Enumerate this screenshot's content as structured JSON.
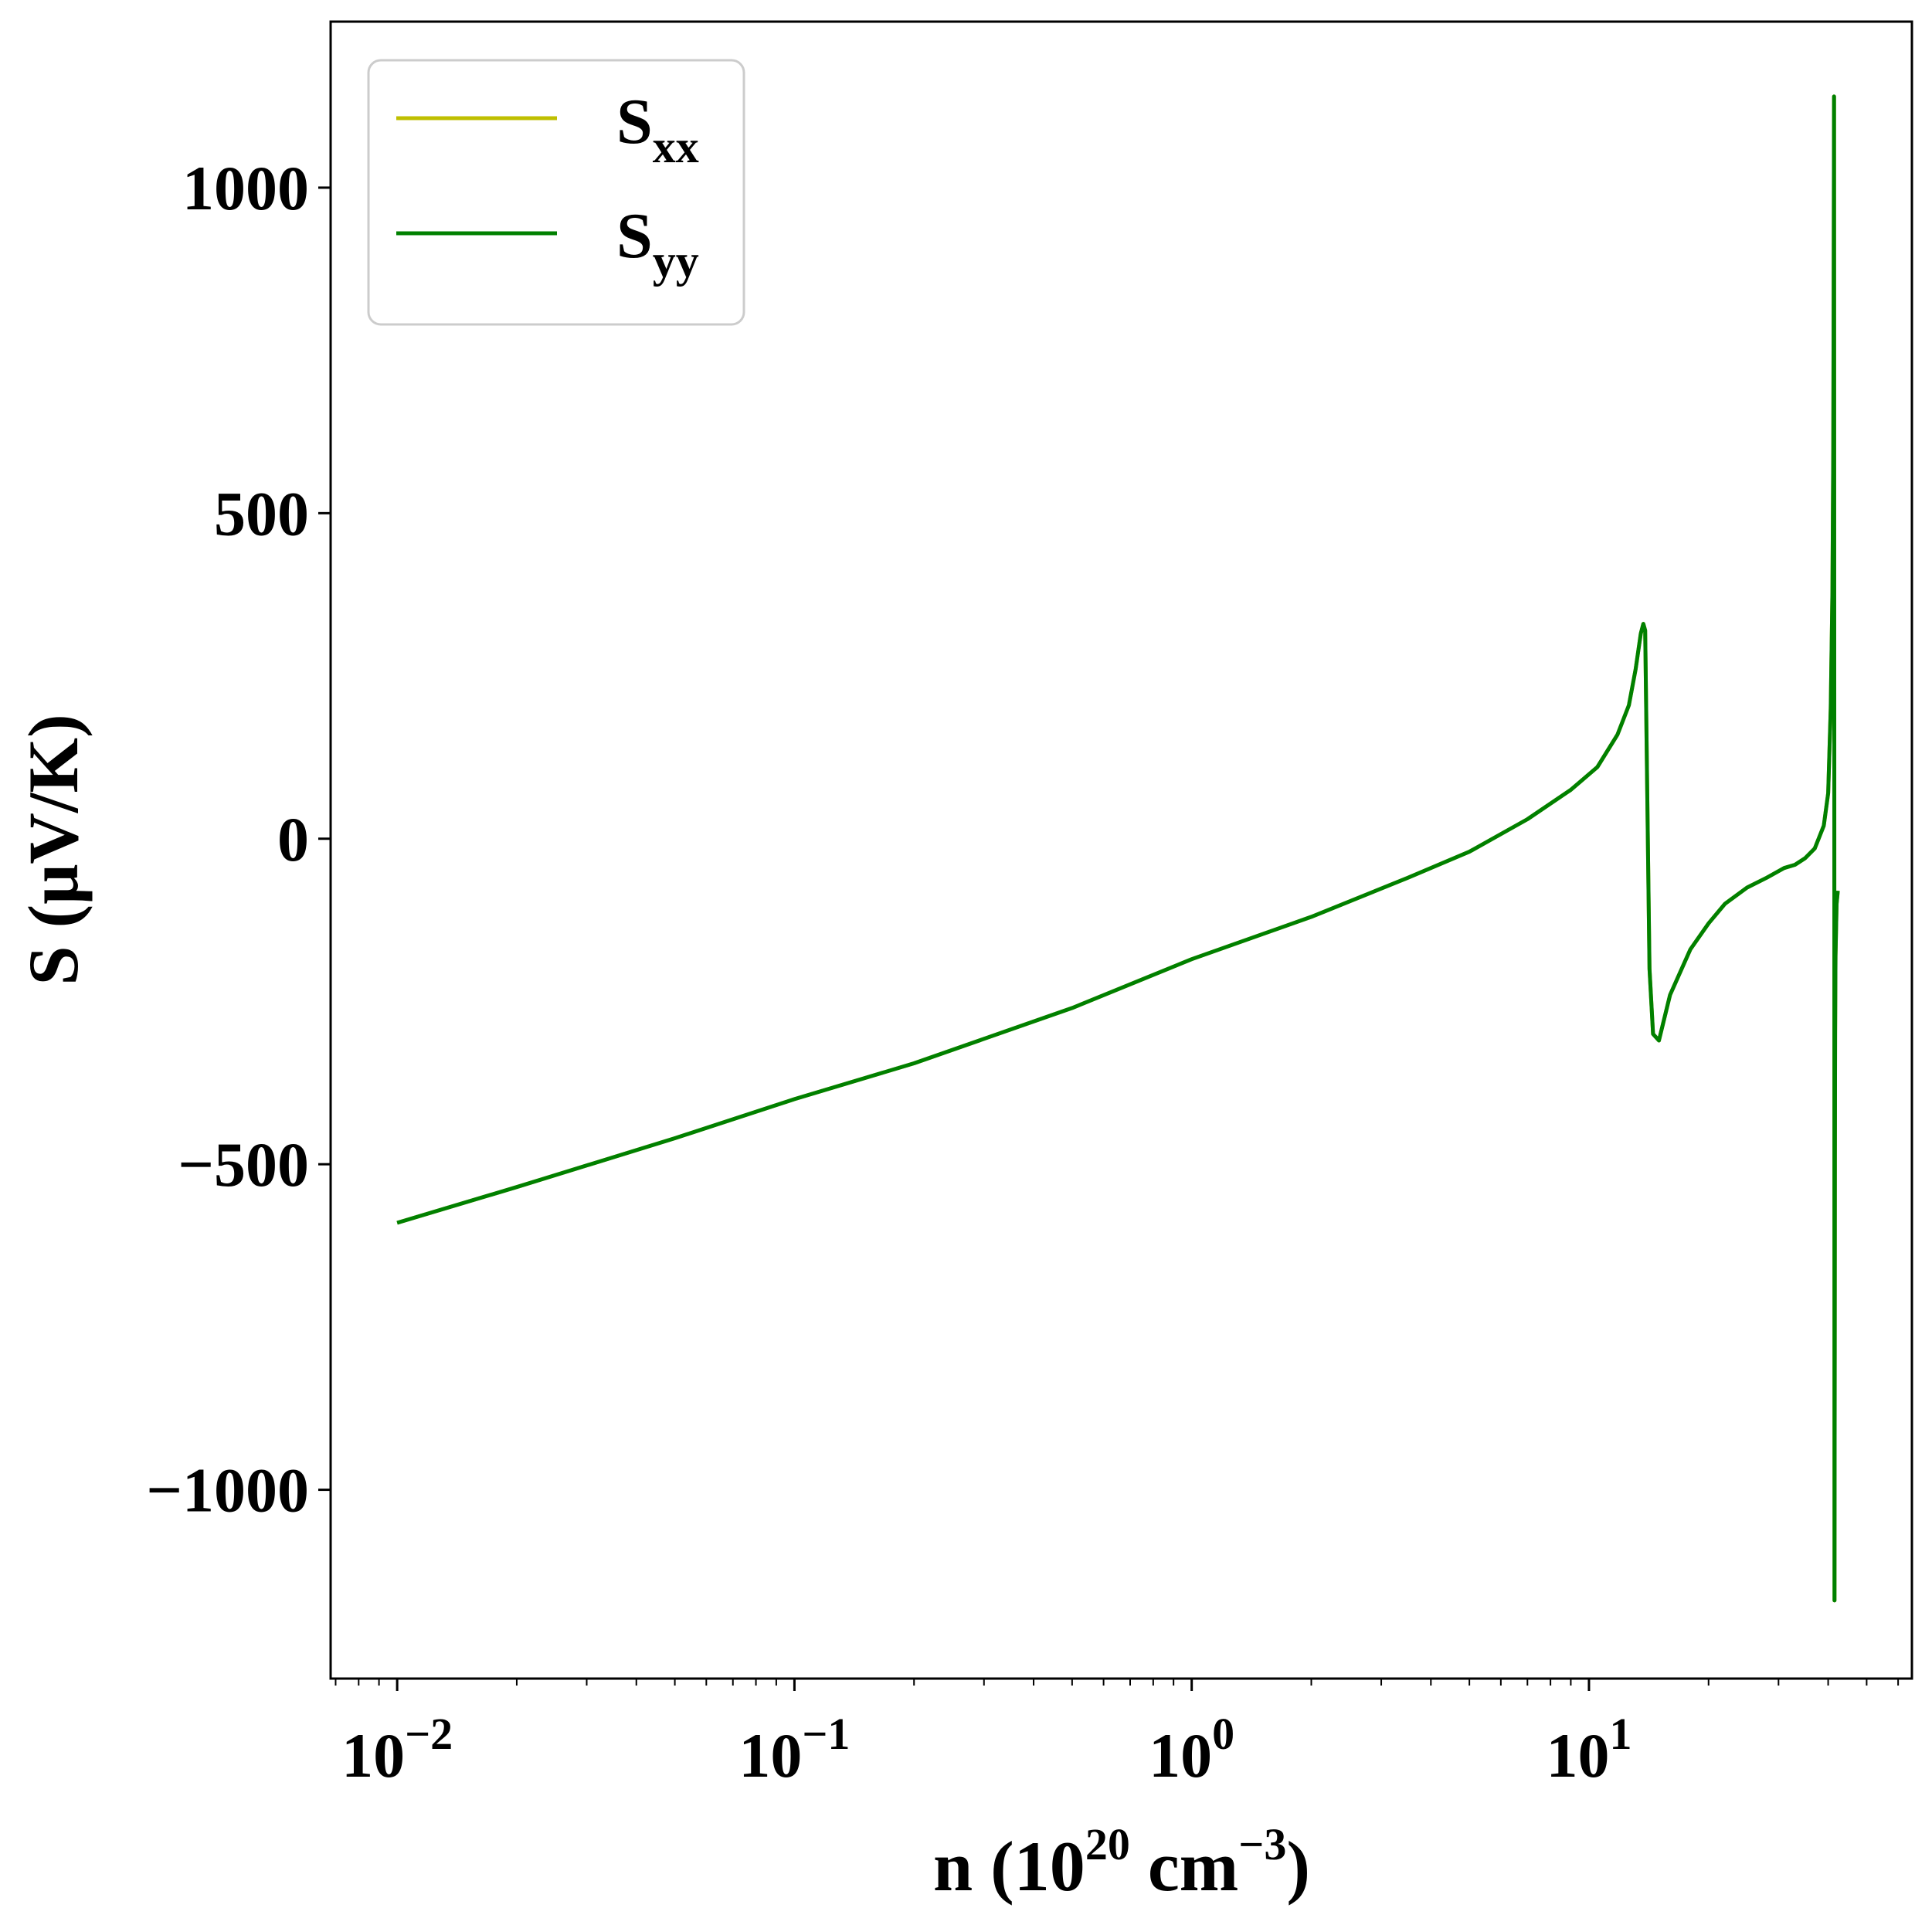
{
  "chart_data": {
    "type": "line",
    "xscale": "log",
    "xlim": [
      0.0068,
      65
    ],
    "ylim": [
      -1290,
      1255
    ],
    "grid": false,
    "legend_position": "top-left",
    "xlabel": {
      "base": "n (10",
      "exp1": "20",
      "mid": " cm",
      "exp2": "−3",
      "end": ")"
    },
    "ylabel": "S (μV/K)",
    "x_ticks": [
      {
        "value": 0.01,
        "base": "10",
        "exp": "−2"
      },
      {
        "value": 0.1,
        "base": "10",
        "exp": "−1"
      },
      {
        "value": 1,
        "base": "10",
        "exp": "0"
      },
      {
        "value": 10,
        "base": "10",
        "exp": "1"
      }
    ],
    "y_ticks": [
      {
        "value": 1000,
        "label": "1000"
      },
      {
        "value": 500,
        "label": "500"
      },
      {
        "value": 0,
        "label": "0"
      },
      {
        "value": -500,
        "label": "−500"
      },
      {
        "value": -1000,
        "label": "−1000"
      }
    ],
    "series": [
      {
        "name": {
          "base": "S",
          "sub": "xx"
        },
        "color": "#bfbf00",
        "x": [
          0.01,
          0.02,
          0.05,
          0.1,
          0.2,
          0.5,
          1,
          2,
          3.5,
          5,
          7,
          9,
          10.5,
          11.8,
          12.6,
          13.1,
          13.5,
          13.7,
          13.85,
          14.2,
          14.5,
          15,
          16,
          18,
          20,
          22,
          25,
          28,
          31,
          33,
          35,
          37,
          39,
          40,
          40.6,
          41,
          41.2,
          41.3,
          41.4,
          41.45,
          41.5,
          41.55,
          41.6,
          41.65,
          41.75,
          42,
          42.3
        ],
        "y": [
          -590,
          -535,
          -460,
          -400,
          -345,
          -260,
          -185,
          -120,
          -60,
          -20,
          30,
          75,
          110,
          160,
          205,
          260,
          315,
          330,
          320,
          -200,
          -300,
          -310,
          -240,
          -170,
          -130,
          -100,
          -75,
          -60,
          -45,
          -40,
          -30,
          -15,
          20,
          70,
          200,
          380,
          600,
          850,
          1140,
          300,
          -1170,
          -800,
          -500,
          -300,
          -180,
          -100,
          -80
        ]
      },
      {
        "name": {
          "base": "S",
          "sub": "yy"
        },
        "color": "#008000",
        "x": [
          0.01,
          0.02,
          0.05,
          0.1,
          0.2,
          0.5,
          1,
          2,
          3.5,
          5,
          7,
          9,
          10.5,
          11.8,
          12.6,
          13.1,
          13.5,
          13.7,
          13.85,
          14.2,
          14.5,
          15,
          16,
          18,
          20,
          22,
          25,
          28,
          31,
          33,
          35,
          37,
          39,
          40,
          40.6,
          41,
          41.2,
          41.3,
          41.4,
          41.45,
          41.5,
          41.55,
          41.6,
          41.65,
          41.75,
          42,
          42.3
        ],
        "y": [
          -590,
          -535,
          -460,
          -400,
          -345,
          -260,
          -185,
          -120,
          -60,
          -20,
          30,
          75,
          110,
          160,
          205,
          260,
          315,
          330,
          320,
          -200,
          -300,
          -310,
          -240,
          -170,
          -130,
          -100,
          -75,
          -60,
          -45,
          -40,
          -30,
          -15,
          20,
          70,
          200,
          380,
          600,
          850,
          1140,
          300,
          -1170,
          -800,
          -500,
          -300,
          -180,
          -100,
          -80
        ]
      }
    ]
  }
}
